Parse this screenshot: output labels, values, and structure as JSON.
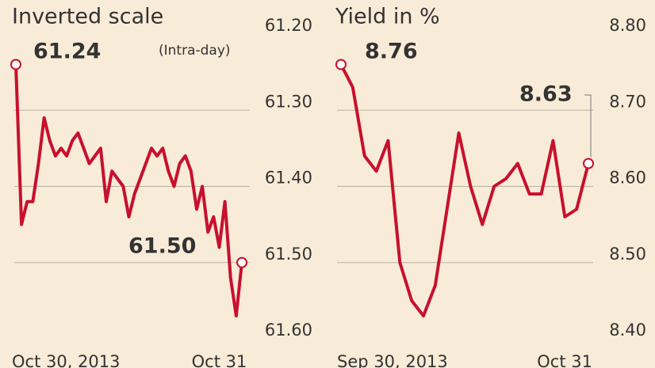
{
  "chart_data": [
    {
      "type": "line",
      "title": "Inverted scale",
      "y_inverted": true,
      "color": "#c8102e",
      "grid": true,
      "categories": [
        "Oct 30, 2013",
        null,
        null,
        null,
        null,
        null,
        null,
        null,
        null,
        null,
        null,
        null,
        null,
        null,
        null,
        null,
        null,
        null,
        null,
        null,
        null,
        null,
        null,
        null,
        null,
        null,
        null,
        null,
        null,
        null,
        null,
        null,
        null,
        null,
        null,
        null,
        "Oct 31",
        null,
        null,
        null,
        null
      ],
      "values": [
        61.24,
        61.45,
        61.42,
        61.42,
        61.37,
        61.31,
        61.34,
        61.36,
        61.35,
        61.36,
        61.34,
        61.33,
        61.35,
        61.37,
        61.36,
        61.35,
        61.42,
        61.38,
        61.39,
        61.4,
        61.44,
        61.41,
        61.39,
        61.37,
        61.35,
        61.36,
        61.35,
        61.38,
        61.4,
        61.37,
        61.36,
        61.38,
        61.43,
        61.4,
        61.46,
        61.44,
        61.48,
        61.42,
        61.52,
        61.57,
        61.5
      ],
      "ylim": [
        61.2,
        61.6
      ],
      "yticks": [
        {
          "value": 61.2,
          "label": "61.20"
        },
        {
          "value": 61.3,
          "label": "61.30"
        },
        {
          "value": 61.4,
          "label": "61.40"
        },
        {
          "value": 61.5,
          "label": "61.50"
        },
        {
          "value": 61.6,
          "label": "61.60"
        }
      ],
      "annotations": [
        "61.24",
        "(Intra-day)",
        "61.50"
      ]
    },
    {
      "type": "line",
      "title": "Yield in %",
      "y_inverted": false,
      "color": "#c8102e",
      "grid": true,
      "categories": [
        "Sep 30, 2013",
        null,
        null,
        null,
        null,
        null,
        null,
        null,
        null,
        null,
        null,
        null,
        null,
        null,
        null,
        null,
        null,
        null,
        null,
        null,
        null,
        "Oct 31"
      ],
      "values": [
        8.76,
        8.73,
        8.64,
        8.62,
        8.66,
        8.5,
        8.45,
        8.43,
        8.47,
        8.57,
        8.67,
        8.6,
        8.55,
        8.6,
        8.61,
        8.63,
        8.59,
        8.59,
        8.66,
        8.56,
        8.57,
        8.63
      ],
      "ylim": [
        8.4,
        8.8
      ],
      "yticks": [
        {
          "value": 8.8,
          "label": "8.80"
        },
        {
          "value": 8.7,
          "label": "8.70"
        },
        {
          "value": 8.6,
          "label": "8.60"
        },
        {
          "value": 8.5,
          "label": "8.50"
        },
        {
          "value": 8.4,
          "label": "8.40"
        }
      ],
      "annotations": [
        "8.76",
        "8.63"
      ]
    }
  ]
}
